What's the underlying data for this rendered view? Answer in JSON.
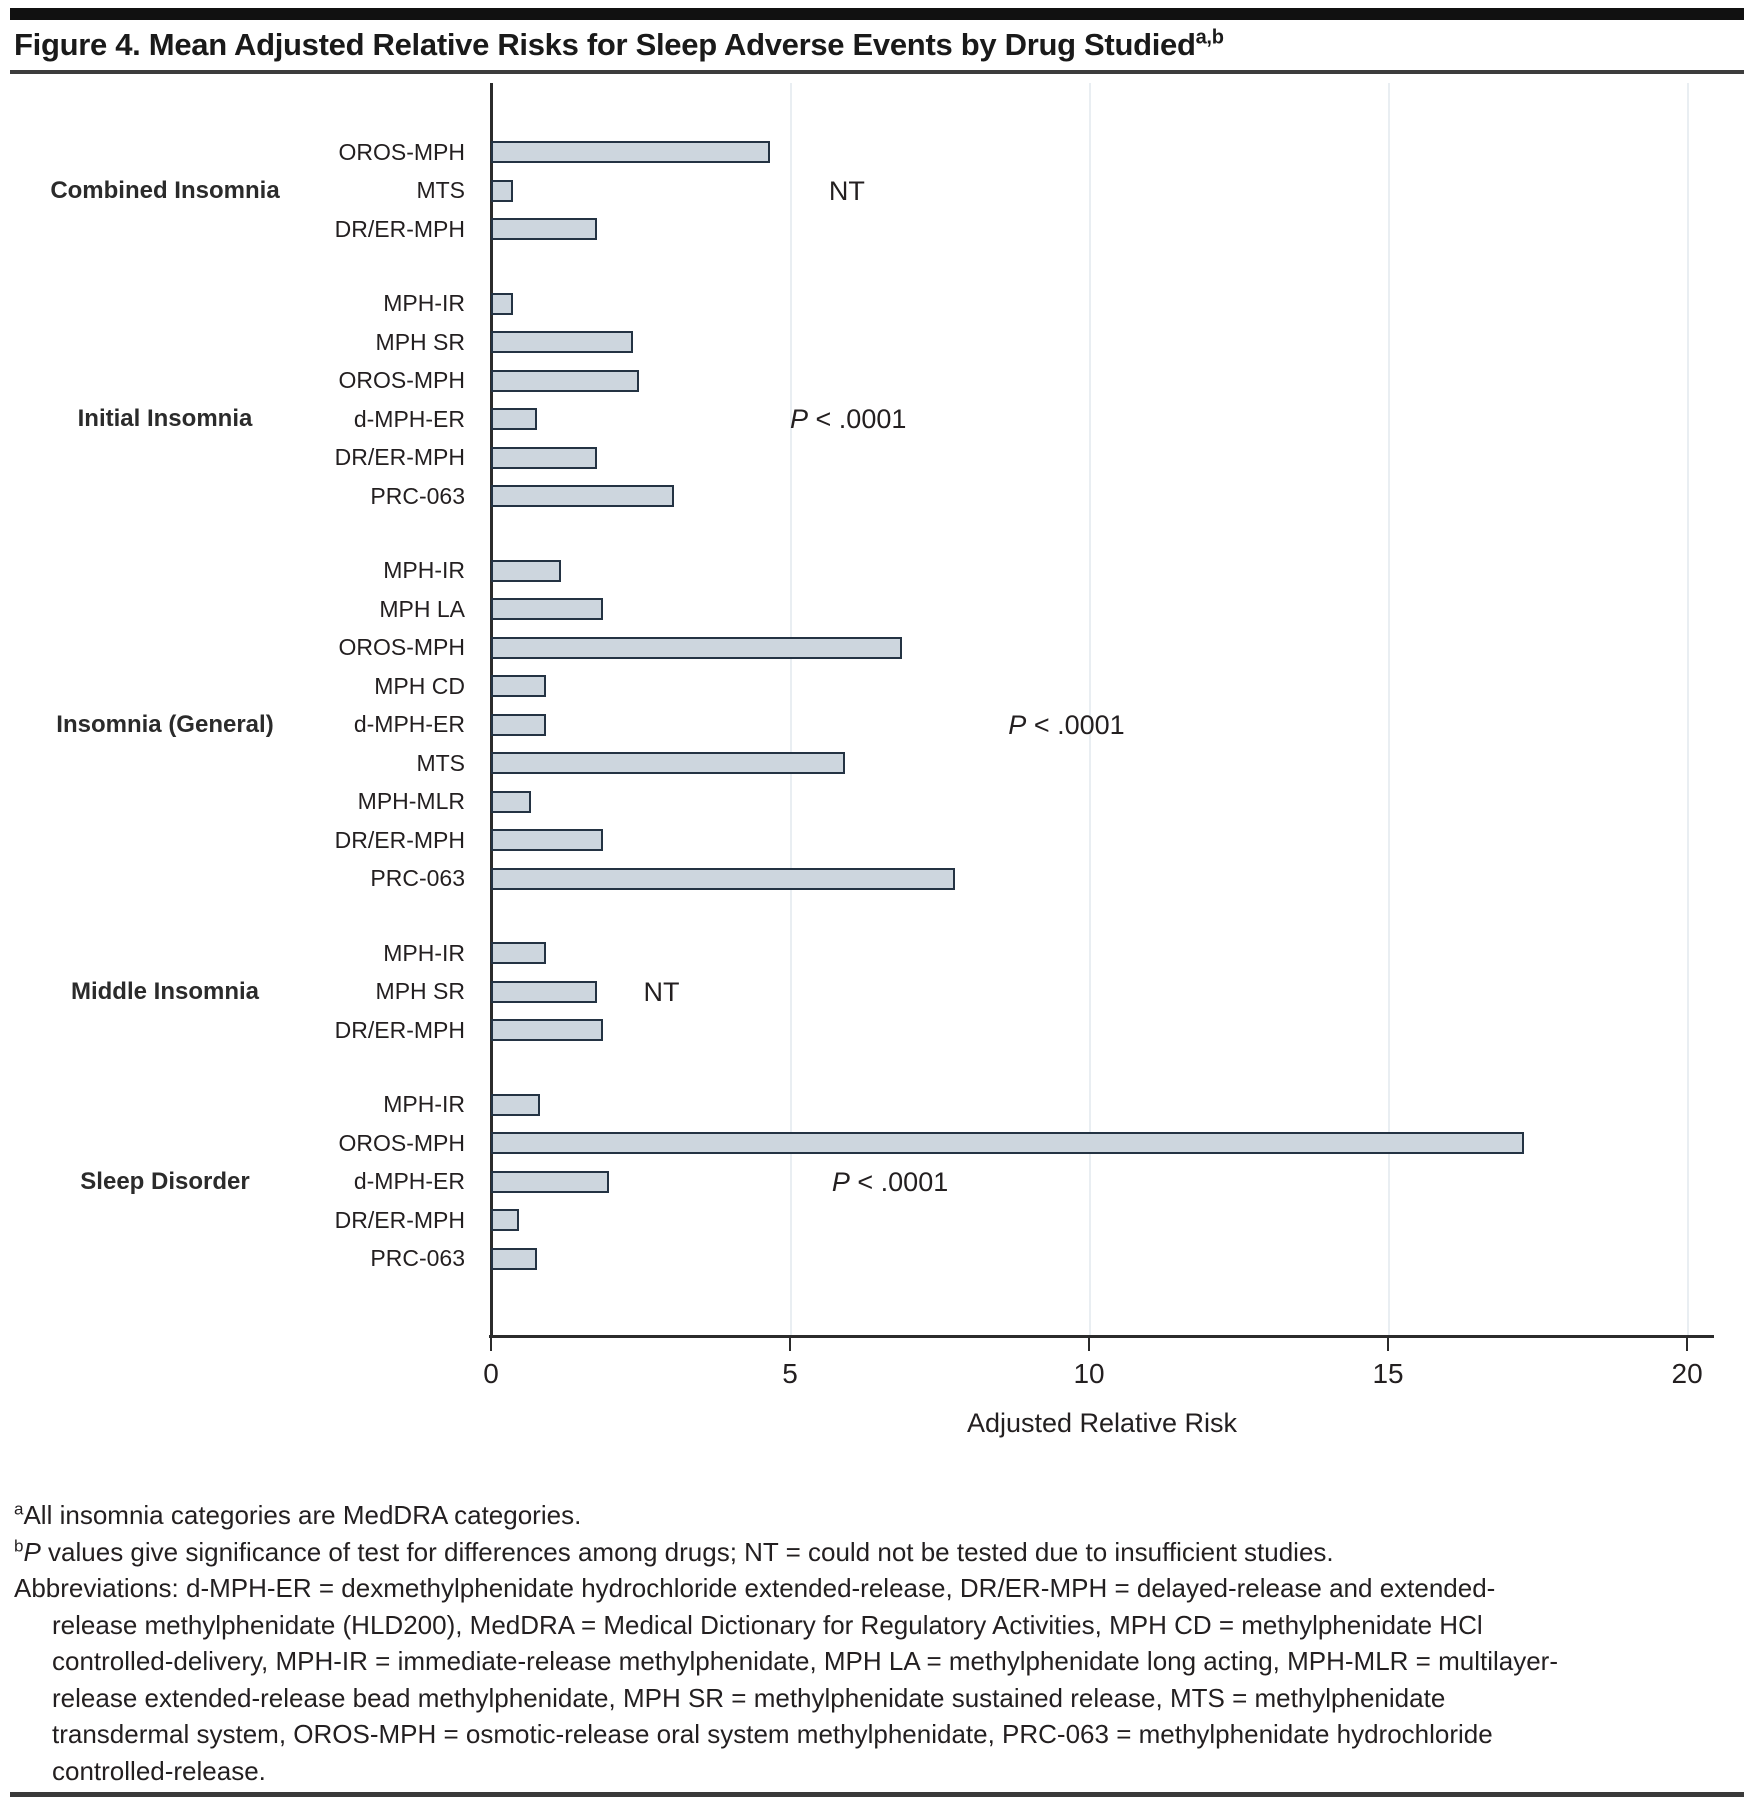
{
  "figure": {
    "title": "Figure 4. Mean Adjusted Relative Risks for Sleep Adverse Events by Drug Studied",
    "title_superscript": "a,b"
  },
  "chart_data": {
    "type": "bar",
    "orientation": "horizontal",
    "xlabel": "Adjusted Relative Risk",
    "xlim": [
      0,
      20.45
    ],
    "xticks": [
      0,
      5,
      10,
      15,
      20
    ],
    "grid": "light vertical gridlines at 5, 10, 15, 20",
    "legend": "none",
    "bar_fill_color": "#cdd6de",
    "bar_border_color": "#243343",
    "groups": [
      {
        "label": "Combined Insomnia",
        "label_anchor_row": 1,
        "annotation": {
          "row": 1,
          "x": 5.65,
          "text": "NT"
        },
        "bars": [
          {
            "drug": "OROS-MPH",
            "value": 4.6
          },
          {
            "drug": "MTS",
            "value": 0.3
          },
          {
            "drug": "DR/ER-MPH",
            "value": 1.7
          }
        ]
      },
      {
        "label": "Initial Insomnia",
        "label_anchor_row": 3,
        "annotation": {
          "row": 3,
          "x": 5.0,
          "italic_prefix": "P",
          "text": " < .0001"
        },
        "bars": [
          {
            "drug": "MPH-IR",
            "value": 0.3
          },
          {
            "drug": "MPH SR",
            "value": 2.3
          },
          {
            "drug": "OROS-MPH",
            "value": 2.4
          },
          {
            "drug": "d-MPH-ER",
            "value": 0.7
          },
          {
            "drug": "DR/ER-MPH",
            "value": 1.7
          },
          {
            "drug": "PRC-063",
            "value": 3.0
          }
        ]
      },
      {
        "label": "Insomnia (General)",
        "label_anchor_row": 4,
        "annotation": {
          "row": 4,
          "x": 8.65,
          "italic_prefix": "P",
          "text": " < .0001"
        },
        "bars": [
          {
            "drug": "MPH-IR",
            "value": 1.1
          },
          {
            "drug": "MPH LA",
            "value": 1.8
          },
          {
            "drug": "OROS-MPH",
            "value": 6.8
          },
          {
            "drug": "MPH CD",
            "value": 0.85
          },
          {
            "drug": "d-MPH-ER",
            "value": 0.85
          },
          {
            "drug": "MTS",
            "value": 5.85
          },
          {
            "drug": "MPH-MLR",
            "value": 0.6
          },
          {
            "drug": "DR/ER-MPH",
            "value": 1.8
          },
          {
            "drug": "PRC-063",
            "value": 7.7
          }
        ]
      },
      {
        "label": "Middle Insomnia",
        "label_anchor_row": 1,
        "annotation": {
          "row": 1,
          "x": 2.55,
          "text": "NT"
        },
        "bars": [
          {
            "drug": "MPH-IR",
            "value": 0.85
          },
          {
            "drug": "MPH SR",
            "value": 1.7
          },
          {
            "drug": "DR/ER-MPH",
            "value": 1.8
          }
        ]
      },
      {
        "label": "Sleep Disorder",
        "label_anchor_row": 2,
        "annotation": {
          "row": 2,
          "x": 5.7,
          "italic_prefix": "P",
          "text": " < .0001"
        },
        "bars": [
          {
            "drug": "MPH-IR",
            "value": 0.75
          },
          {
            "drug": "OROS-MPH",
            "value": 17.2
          },
          {
            "drug": "d-MPH-ER",
            "value": 1.9
          },
          {
            "drug": "DR/ER-MPH",
            "value": 0.4
          },
          {
            "drug": "PRC-063",
            "value": 0.7
          }
        ]
      }
    ]
  },
  "footnotes": {
    "a_sup": "a",
    "a_text": "All insomnia categories are MedDRA categories.",
    "b_sup": "b",
    "b_italic": "P",
    "b_text": " values give significance of test for differences among drugs; NT = could not be tested due to insufficient studies.",
    "abbrev_lines": [
      "Abbreviations: d-MPH-ER = dexmethylphenidate hydrochloride extended-release, DR/ER-MPH = delayed-release and extended-",
      "release methylphenidate (HLD200), MedDRA = Medical Dictionary for Regulatory Activities, MPH CD = methylphenidate HCl",
      "controlled-delivery, MPH-IR = immediate-release methylphenidate, MPH LA = methylphenidate long acting, MPH-MLR = multilayer-",
      "release extended-release bead methylphenidate, MPH SR = methylphenidate sustained release, MTS = methylphenidate",
      "transdermal system, OROS-MPH = osmotic-release oral system methylphenidate, PRC-063 = methylphenidate hydrochloride",
      "controlled-release."
    ]
  }
}
